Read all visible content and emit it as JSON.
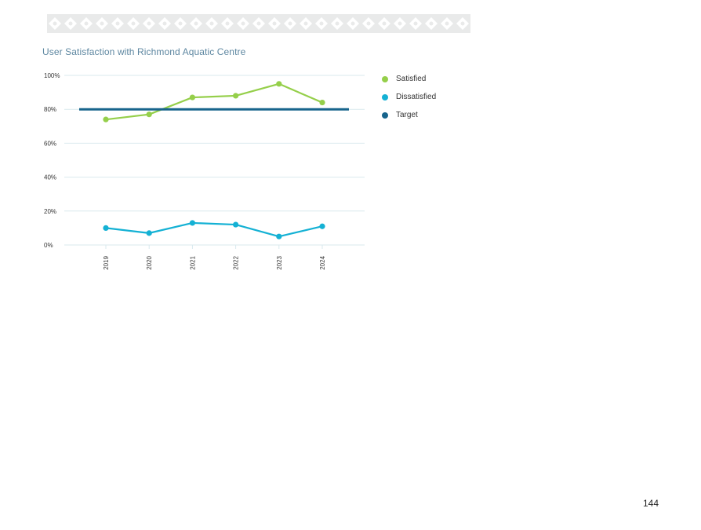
{
  "colors": {
    "satisfied": "#95cf4a",
    "dissatisfied": "#14b1d4",
    "target": "#17648c",
    "grid": "#d9e9ee",
    "banner": "#e9eaea"
  },
  "chart_data": {
    "type": "line",
    "title": "User Satisfaction with Richmond Aquatic Centre",
    "categories": [
      "2019",
      "2020",
      "2021",
      "2022",
      "2023",
      "2024"
    ],
    "series": [
      {
        "name": "Satisfied",
        "values": [
          74,
          77,
          87,
          88,
          95,
          84
        ]
      },
      {
        "name": "Dissatisfied",
        "values": [
          10,
          7,
          13,
          12,
          5,
          11
        ]
      },
      {
        "name": "Target",
        "values": [
          80,
          80,
          80,
          80,
          80,
          80
        ]
      }
    ],
    "ylim": [
      0,
      100
    ],
    "yticks": [
      0,
      20,
      40,
      60,
      80,
      100
    ],
    "ytick_labels": [
      "0%",
      "20%",
      "40%",
      "60%",
      "80%",
      "100%"
    ],
    "grid": true,
    "legend_position": "right"
  },
  "legend": {
    "items": [
      {
        "label": "Satisfied",
        "color": "#95cf4a"
      },
      {
        "label": "Dissatisfied",
        "color": "#14b1d4"
      },
      {
        "label": "Target",
        "color": "#17648c"
      }
    ]
  },
  "page_number": "144"
}
